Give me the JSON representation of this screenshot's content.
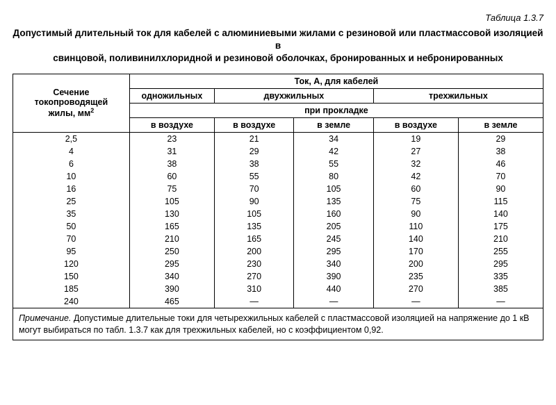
{
  "table_number": "Таблица 1.3.7",
  "title_line1": "Допустимый длительный ток для кабелей с алюминиевыми жилами с резиновой или пластмассовой изоляцией в",
  "title_line2": "свинцовой, поливинилхлоридной и резиновой оболочках, бронированных и небронированных",
  "header": {
    "row_label_1": "Сечение токопроводящей",
    "row_label_2": "жилы, мм",
    "row_label_sup": "2",
    "top_span": "Ток, А, для кабелей",
    "single": "одножильных",
    "double": "двухжильных",
    "triple": "трехжильных",
    "laying": "при прокладке",
    "in_air": "в воздухе",
    "in_ground": "в земле"
  },
  "rows": [
    {
      "s": "2,5",
      "c": [
        "23",
        "21",
        "34",
        "19",
        "29"
      ]
    },
    {
      "s": "4",
      "c": [
        "31",
        "29",
        "42",
        "27",
        "38"
      ]
    },
    {
      "s": "6",
      "c": [
        "38",
        "38",
        "55",
        "32",
        "46"
      ]
    },
    {
      "s": "10",
      "c": [
        "60",
        "55",
        "80",
        "42",
        "70"
      ]
    },
    {
      "s": "16",
      "c": [
        "75",
        "70",
        "105",
        "60",
        "90"
      ]
    },
    {
      "s": "25",
      "c": [
        "105",
        "90",
        "135",
        "75",
        "115"
      ]
    },
    {
      "s": "35",
      "c": [
        "130",
        "105",
        "160",
        "90",
        "140"
      ]
    },
    {
      "s": "50",
      "c": [
        "165",
        "135",
        "205",
        "110",
        "175"
      ]
    },
    {
      "s": "70",
      "c": [
        "210",
        "165",
        "245",
        "140",
        "210"
      ]
    },
    {
      "s": "95",
      "c": [
        "250",
        "200",
        "295",
        "170",
        "255"
      ]
    },
    {
      "s": "120",
      "c": [
        "295",
        "230",
        "340",
        "200",
        "295"
      ]
    },
    {
      "s": "150",
      "c": [
        "340",
        "270",
        "390",
        "235",
        "335"
      ]
    },
    {
      "s": "185",
      "c": [
        "390",
        "310",
        "440",
        "270",
        "385"
      ]
    },
    {
      "s": "240",
      "c": [
        "465",
        "—",
        "—",
        "—",
        "—"
      ]
    }
  ],
  "note_lead": "Примечание.",
  "note_body": " Допустимые длительные токи для четырехжильных кабелей с пластмассовой изоляцией на напряжение до 1 кВ могут выбираться по табл. 1.3.7 как для трехжильных кабелей, но с коэффициентом 0,92.",
  "style": {
    "type": "table",
    "font_family": "Arial",
    "title_fontsize_pt": 10,
    "body_fontsize_pt": 9.5,
    "border_color": "#000000",
    "background_color": "#ffffff",
    "text_color": "#000000",
    "col_widths_pct": [
      22,
      16,
      15,
      15,
      16,
      16
    ]
  }
}
